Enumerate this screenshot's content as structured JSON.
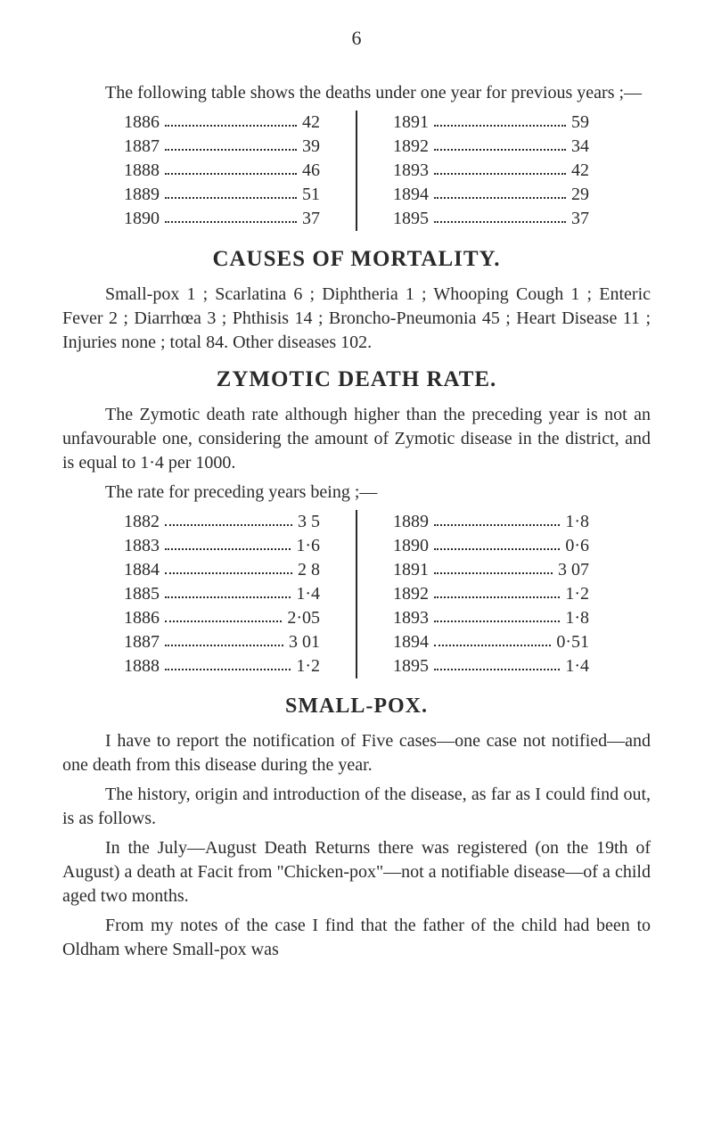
{
  "pageNumber": "6",
  "intro1": "The following table shows the deaths under one year for previous years ;—",
  "table1": {
    "left": [
      {
        "year": "1886",
        "val": "42"
      },
      {
        "year": "1887",
        "val": "39"
      },
      {
        "year": "1888",
        "val": "46"
      },
      {
        "year": "1889",
        "val": "51"
      },
      {
        "year": "1890",
        "val": "37"
      }
    ],
    "right": [
      {
        "year": "1891",
        "val": "59"
      },
      {
        "year": "1892",
        "val": "34"
      },
      {
        "year": "1893",
        "val": "42"
      },
      {
        "year": "1894",
        "val": "29"
      },
      {
        "year": "1895",
        "val": "37"
      }
    ]
  },
  "heading1": "CAUSES OF MORTALITY.",
  "para1": "Small-pox 1 ; Scarlatina 6 ; Diphtheria 1 ; Whooping Cough 1 ; Enteric Fever 2 ; Diarrhœa 3 ; Phthisis 14 ; Broncho-Pneumonia 45 ; Heart Disease 11 ; Injuries none ; total 84.  Other diseases 102.",
  "heading2": "ZYMOTIC DEATH RATE.",
  "para2": "The Zymotic death rate although higher than the preceding year is not an unfavourable one, considering the amount of Zymotic disease in the district, and is equal to 1·4 per 1000.",
  "intro2": "The rate for preceding years being ;—",
  "table2": {
    "left": [
      {
        "year": "1882",
        "val": "3 5"
      },
      {
        "year": "1883",
        "val": "1·6"
      },
      {
        "year": "1884",
        "val": "2 8"
      },
      {
        "year": "1885",
        "val": "1·4"
      },
      {
        "year": "1886",
        "val": "2·05"
      },
      {
        "year": "1887",
        "val": "3 01"
      },
      {
        "year": "1888",
        "val": "1·2"
      }
    ],
    "right": [
      {
        "year": "1889",
        "val": "1·8"
      },
      {
        "year": "1890",
        "val": "0·6"
      },
      {
        "year": "1891",
        "val": "3 07"
      },
      {
        "year": "1892",
        "val": "1·2"
      },
      {
        "year": "1893",
        "val": "1·8"
      },
      {
        "year": "1894",
        "val": "0·51"
      },
      {
        "year": "1895",
        "val": "1·4"
      }
    ]
  },
  "heading3": "SMALL-POX.",
  "para3": "I have to report the notification of Five cases—one case not notified—and one death from this disease during the year.",
  "para4": "The history, origin and introduction of the disease, as far as I could find out, is as follows.",
  "para5": "In the July—August Death Returns there was registered (on the 19th of August) a death at Facit from \"Chicken-pox\"—not a notifiable disease—of a child aged two months.",
  "para6": "From my notes of the case I find that the father of the child had been to Oldham where Small-pox was"
}
